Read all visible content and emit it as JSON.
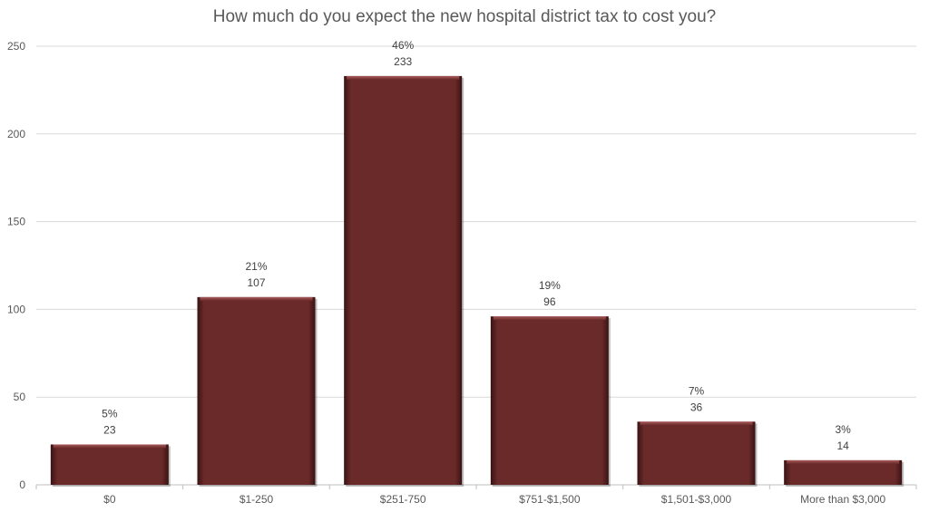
{
  "chart_data": {
    "type": "bar",
    "title": "How much do you expect the new hospital district tax to cost you?",
    "categories": [
      "$0",
      "$1-250",
      "$251-750",
      "$751-$1,500",
      "$1,501-$3,000",
      "More than $3,000"
    ],
    "values": [
      23,
      107,
      233,
      96,
      36,
      14
    ],
    "percent_labels": [
      "5%",
      "21%",
      "46%",
      "19%",
      "7%",
      "3%"
    ],
    "ylim": [
      0,
      250
    ],
    "yticks": [
      0,
      50,
      100,
      150,
      200,
      250
    ],
    "grid": true,
    "legend": "none",
    "colors": {
      "bar": "#6b2a2a",
      "bar_highlight": "#a85b5b",
      "bar_shadow": "#3a1313",
      "grid": "#d9d9d9",
      "text": "#595959"
    }
  }
}
